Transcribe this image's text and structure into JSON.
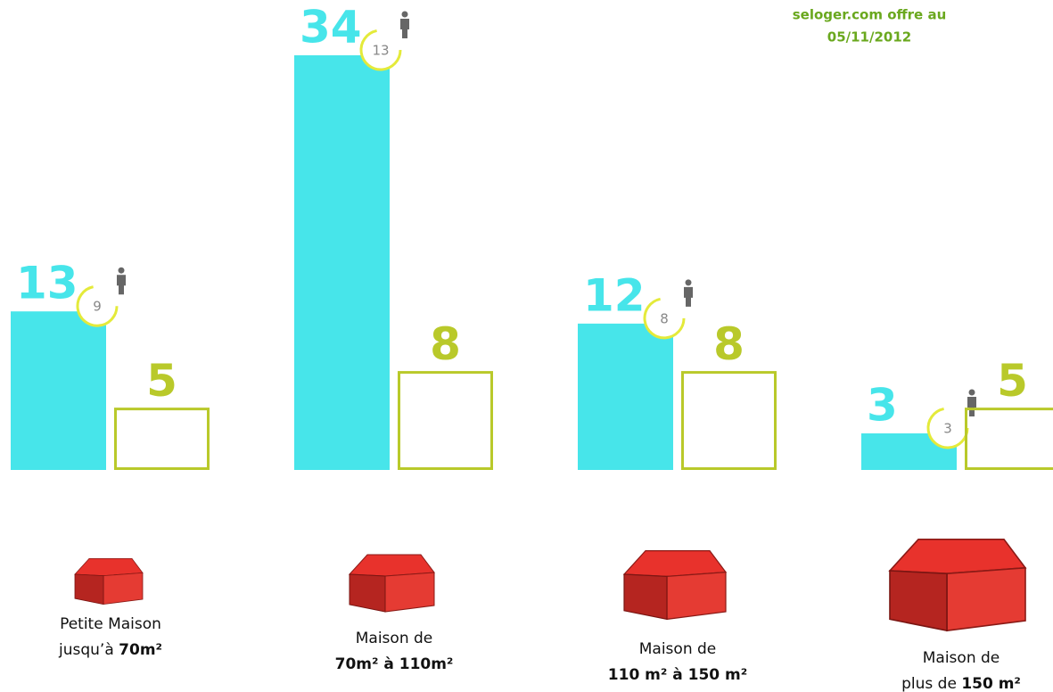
{
  "chart_data": {
    "type": "bar",
    "title": [
      "seloger.com offre au",
      "05/11/2012"
    ],
    "categories": [
      [
        [
          "Petite Maison"
        ],
        [
          "jusqu’à ",
          "70m²"
        ]
      ],
      [
        [
          "Maison de"
        ],
        [
          "70m² à 110m²"
        ]
      ],
      [
        [
          "Maison de"
        ],
        [
          "110 m² à 150 m²"
        ]
      ],
      [
        [
          "Maison de"
        ],
        [
          "plus de ",
          "150 m²"
        ]
      ]
    ],
    "series": [
      {
        "color": "#47e5ea",
        "values": [
          13,
          34,
          12,
          3
        ]
      },
      {
        "color": "#b9c92a",
        "values": [
          5,
          8,
          8,
          5
        ]
      }
    ],
    "circle_values": [
      9,
      13,
      8,
      3
    ],
    "circle_color": "#e4ea3a"
  }
}
